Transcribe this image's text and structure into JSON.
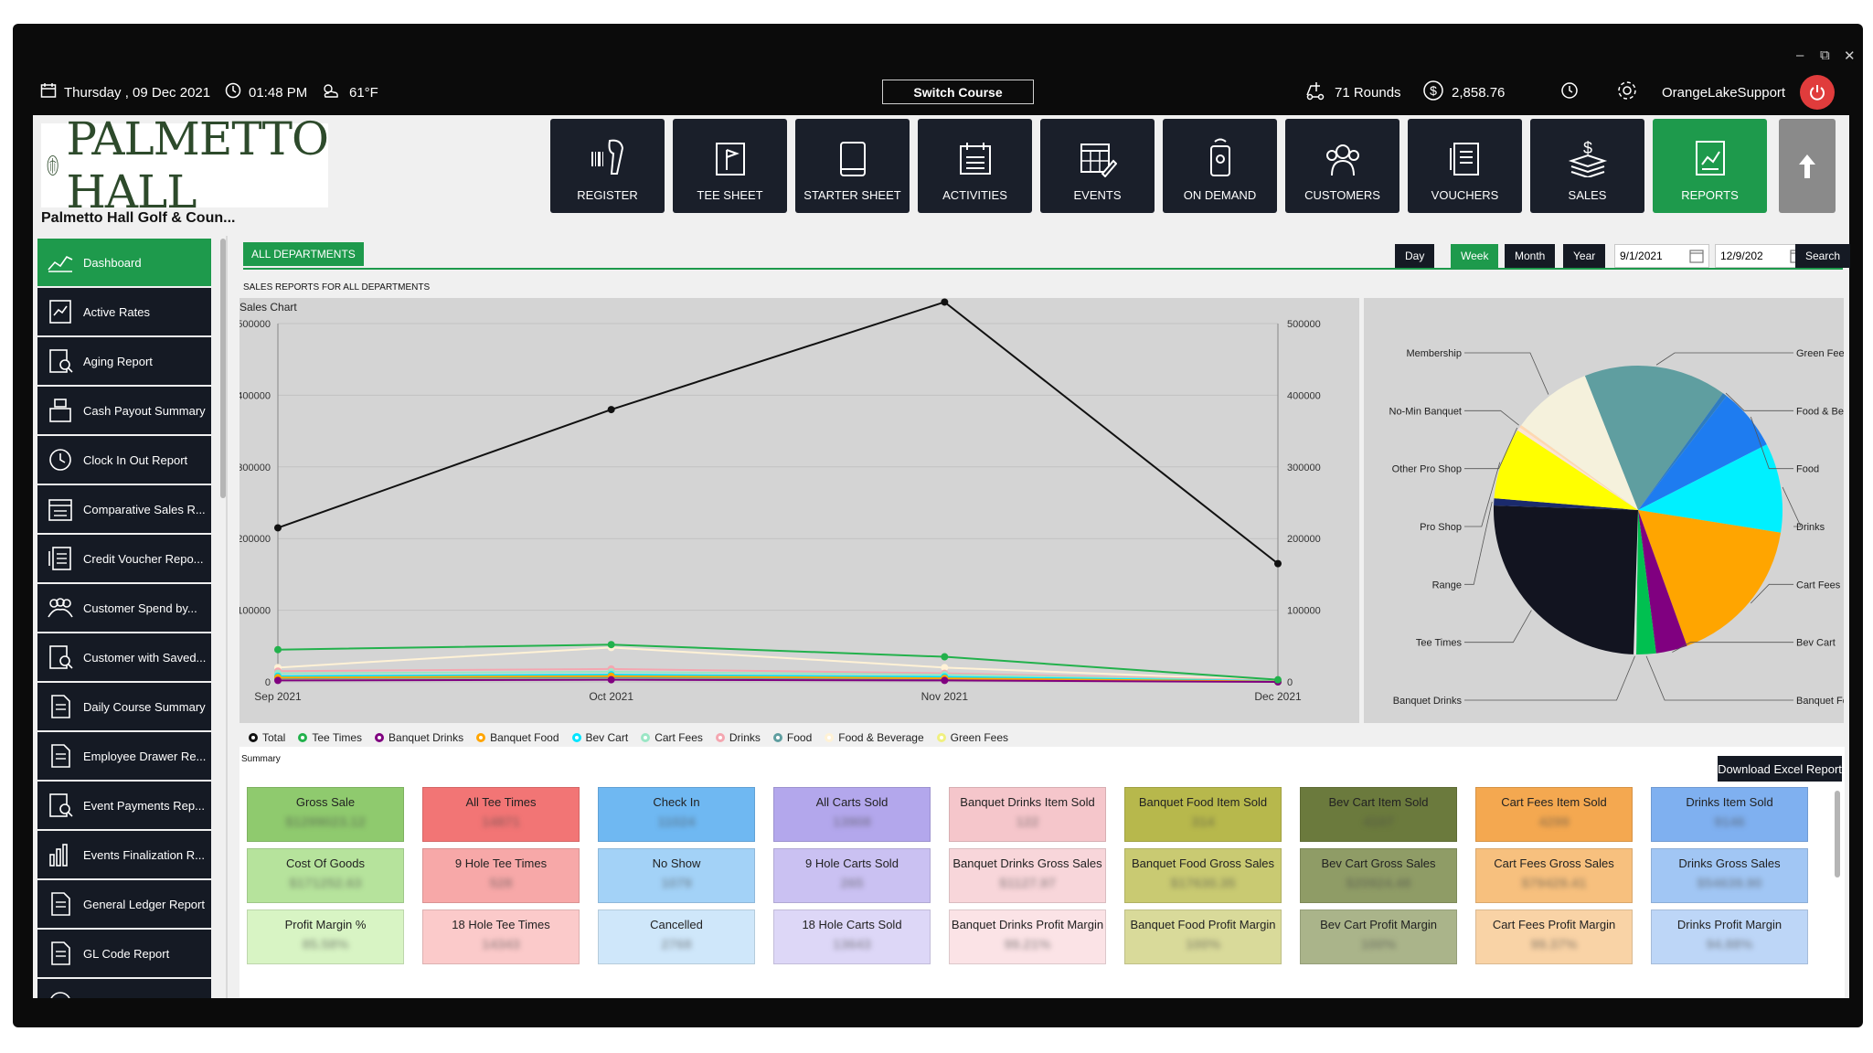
{
  "window": {
    "minimize": "–",
    "restore": "⧉",
    "close": "✕"
  },
  "topbar": {
    "date": "Thursday , 09 Dec 2021",
    "time": "01:48 PM",
    "weather": "61°F",
    "switch_course": "Switch Course",
    "rounds": "71 Rounds",
    "balance": "2,858.76",
    "user": "OrangeLakeSupport"
  },
  "brand": {
    "logo_text": "PALMETTO HALL",
    "club_name": "Palmetto Hall Golf & Coun..."
  },
  "nav": [
    {
      "label": "REGISTER",
      "icon": "barcode-scanner-icon"
    },
    {
      "label": "TEE SHEET",
      "icon": "flag-sheet-icon"
    },
    {
      "label": "STARTER SHEET",
      "icon": "tablet-icon"
    },
    {
      "label": "ACTIVITIES",
      "icon": "calendar-list-icon"
    },
    {
      "label": "EVENTS",
      "icon": "calendar-edit-icon"
    },
    {
      "label": "ON DEMAND",
      "icon": "phone-icon"
    },
    {
      "label": "CUSTOMERS",
      "icon": "users-icon"
    },
    {
      "label": "VOUCHERS",
      "icon": "voucher-icon"
    },
    {
      "label": "SALES",
      "icon": "money-stack-icon"
    },
    {
      "label": "REPORTS",
      "icon": "report-chart-icon"
    }
  ],
  "sidebar": [
    {
      "label": "Dashboard"
    },
    {
      "label": "Active Rates"
    },
    {
      "label": "Aging Report"
    },
    {
      "label": "Cash Payout Summary"
    },
    {
      "label": "Clock In Out Report"
    },
    {
      "label": "Comparative Sales R..."
    },
    {
      "label": "Credit Voucher Repo..."
    },
    {
      "label": "Customer Spend by..."
    },
    {
      "label": "Customer with Saved..."
    },
    {
      "label": "Daily Course Summary"
    },
    {
      "label": "Employee Drawer Re..."
    },
    {
      "label": "Event Payments Rep..."
    },
    {
      "label": "Events Finalization R..."
    },
    {
      "label": "General Ledger Report"
    },
    {
      "label": "GL Code Report"
    }
  ],
  "filters": {
    "department": "ALL DEPARTMENTS",
    "periods": [
      "Day",
      "Week",
      "Month",
      "Year"
    ],
    "selected_period": "Week",
    "start_date": "9/1/2021",
    "end_date": "12/9/202",
    "search": "Search"
  },
  "report_heading": "SALES REPORTS FOR ALL DEPARTMENTS",
  "chart_data": [
    {
      "type": "line",
      "title": "Sales Chart",
      "categories": [
        "Sep 2021",
        "Oct 2021",
        "Nov 2021",
        "Dec 2021"
      ],
      "ylim": [
        0,
        500000
      ],
      "yticks": [
        0,
        100000,
        200000,
        300000,
        400000,
        500000
      ],
      "grid": true,
      "legend_position": "bottom",
      "series": [
        {
          "name": "Total",
          "color": "#111111",
          "values": [
            215000,
            380000,
            530000,
            165000
          ]
        },
        {
          "name": "Tee Times",
          "color": "#22b14c",
          "values": [
            45000,
            52000,
            35000,
            3000
          ]
        },
        {
          "name": "Banquet Drinks",
          "color": "#800080",
          "values": [
            2000,
            3000,
            2000,
            0
          ]
        },
        {
          "name": "Banquet Food",
          "color": "#ffa500",
          "values": [
            6000,
            8000,
            5000,
            500
          ]
        },
        {
          "name": "Bev Cart",
          "color": "#00e5ff",
          "values": [
            8000,
            10000,
            7000,
            1000
          ]
        },
        {
          "name": "Cart Fees",
          "color": "#9be6c5",
          "values": [
            12000,
            14000,
            10000,
            1500
          ]
        },
        {
          "name": "Drinks",
          "color": "#f4a6b0",
          "values": [
            15000,
            18000,
            12000,
            2000
          ]
        },
        {
          "name": "Food",
          "color": "#5f9ea0",
          "values": [
            5000,
            6000,
            4000,
            600
          ]
        },
        {
          "name": "Food & Beverage",
          "color": "#fff2d6",
          "values": [
            20000,
            48000,
            20000,
            2000
          ]
        },
        {
          "name": "Green Fees",
          "color": "#f0f080",
          "values": [
            3000,
            4000,
            2500,
            300
          ]
        }
      ]
    },
    {
      "type": "pie",
      "slices": [
        {
          "name": "Green Fees",
          "value": 16,
          "color": "#5f9ea0"
        },
        {
          "name": "Food & Beverage",
          "value": 0.5,
          "color": "#2e7cc0"
        },
        {
          "name": "Food",
          "value": 7,
          "color": "#1e7cf0"
        },
        {
          "name": "Drinks",
          "value": 10,
          "color": "#00f0ff"
        },
        {
          "name": "Cart Fees",
          "value": 17,
          "color": "#ffa500"
        },
        {
          "name": "Bev Cart",
          "value": 3.5,
          "color": "#800080"
        },
        {
          "name": "Banquet Food",
          "value": 2.2,
          "color": "#00c050"
        },
        {
          "name": "Banquet Drinks",
          "value": 0.3,
          "color": "#e0e0e0"
        },
        {
          "name": "Tee Times",
          "value": 25,
          "color": "#121420"
        },
        {
          "name": "Range",
          "value": 0.8,
          "color": "#1a2a6c"
        },
        {
          "name": "Pro Shop",
          "value": 8,
          "color": "#ffff00"
        },
        {
          "name": "Other Pro Shop",
          "value": 0.4,
          "color": "#fce4d6"
        },
        {
          "name": "No-Min Banquet",
          "value": 0.3,
          "color": "#ffd8b0"
        },
        {
          "name": "Membership",
          "value": 9,
          "color": "#f5f1dc"
        }
      ]
    }
  ],
  "summary": {
    "label": "Summary",
    "download": "Download Excel Report",
    "columns": [
      {
        "cards": [
          {
            "label": "Gross Sale",
            "value": "$1299023.12",
            "color": "#8fca6e"
          },
          {
            "label": "Cost Of Goods",
            "value": "$171252.63",
            "color": "#b6e39c"
          },
          {
            "label": "Profit Margin %",
            "value": "85.58%",
            "color": "#d8f4c4"
          }
        ]
      },
      {
        "cards": [
          {
            "label": "All Tee Times",
            "value": "14871",
            "color": "#f27575"
          },
          {
            "label": "9 Hole Tee Times",
            "value": "528",
            "color": "#f7a8a8"
          },
          {
            "label": "18 Hole Tee Times",
            "value": "14343",
            "color": "#fbcaca"
          }
        ]
      },
      {
        "cards": [
          {
            "label": "Check In",
            "value": "11024",
            "color": "#6fb8f2"
          },
          {
            "label": "No Show",
            "value": "1079",
            "color": "#a3d2f7"
          },
          {
            "label": "Cancelled",
            "value": "2768",
            "color": "#cfe7fa"
          }
        ]
      },
      {
        "cards": [
          {
            "label": "All Carts Sold",
            "value": "13908",
            "color": "#b3a7ec"
          },
          {
            "label": "9 Hole Carts Sold",
            "value": "265",
            "color": "#cac1f2"
          },
          {
            "label": "18 Hole Carts Sold",
            "value": "13643",
            "color": "#ddd7f7"
          }
        ]
      },
      {
        "cards": [
          {
            "label": "Banquet Drinks Item Sold",
            "value": "122",
            "color": "#f5c6cb"
          },
          {
            "label": "Banquet Drinks Gross Sales",
            "value": "$1127.97",
            "color": "#f8d6da"
          },
          {
            "label": "Banquet Drinks Profit Margin",
            "value": "99.21%",
            "color": "#fbe3e6"
          }
        ]
      },
      {
        "cards": [
          {
            "label": "Banquet Food Item Sold",
            "value": "314",
            "color": "#b7b84c"
          },
          {
            "label": "Banquet Food Gross Sales",
            "value": "$17630.35",
            "color": "#c9ca72"
          },
          {
            "label": "Banquet Food Profit Margin",
            "value": "100%",
            "color": "#d9da9a"
          }
        ]
      },
      {
        "cards": [
          {
            "label": "Bev Cart Item Sold",
            "value": "4107",
            "color": "#6b7a3d"
          },
          {
            "label": "Bev Cart Gross Sales",
            "value": "$20924.48",
            "color": "#8f9c66"
          },
          {
            "label": "Bev Cart Profit Margin",
            "value": "100%",
            "color": "#aab48a"
          }
        ]
      },
      {
        "cards": [
          {
            "label": "Cart Fees Item Sold",
            "value": "4299",
            "color": "#f4a850"
          },
          {
            "label": "Cart Fees Gross Sales",
            "value": "$79429.41",
            "color": "#f7c07e"
          },
          {
            "label": "Cart Fees Profit Margin",
            "value": "99.37%",
            "color": "#f9d3a6"
          }
        ]
      },
      {
        "cards": [
          {
            "label": "Drinks Item Sold",
            "value": "9146",
            "color": "#7fb0f0"
          },
          {
            "label": "Drinks Gross Sales",
            "value": "$54639.90",
            "color": "#a1c6f4"
          },
          {
            "label": "Drinks Profit Margin",
            "value": "94.88%",
            "color": "#bdd6f7"
          }
        ]
      }
    ]
  },
  "colors": {
    "accent": "#1e9a4c",
    "dark": "#151a24",
    "power": "#e03c3c"
  }
}
